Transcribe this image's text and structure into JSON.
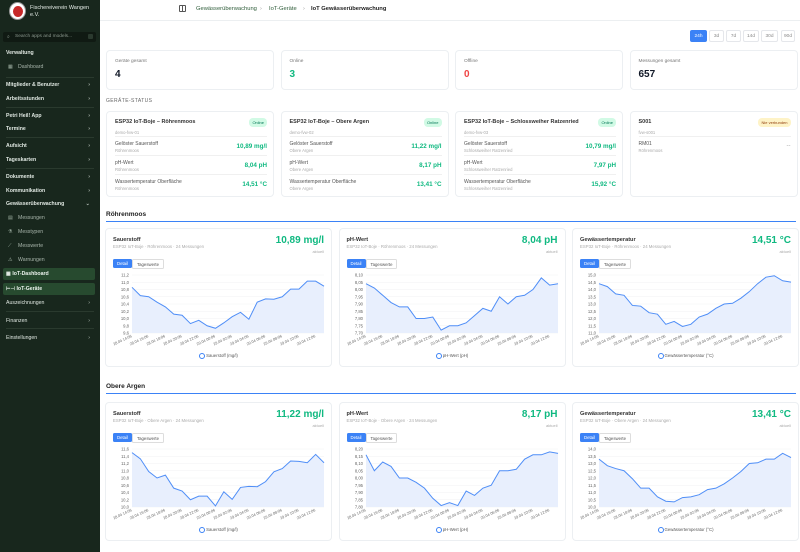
{
  "sidebar": {
    "org_name": "Fischereiverein Wangen e.V.",
    "search_placeholder": "Search apps and models...",
    "section": "Verwaltung",
    "dashboard": "Dashboard",
    "groups": [
      "Mitglieder & Benutzer",
      "Arbeitsstunden",
      "Petri Heil! App",
      "Termine",
      "Aufsicht",
      "Tageskarten",
      "Dokumente",
      "Kommunikation",
      "Gewässerüberwachung"
    ],
    "sub": [
      "Messungen",
      "Messtypen",
      "Messwerte",
      "Warnungen",
      "IoT-Dashboard",
      "IoT-Geräte"
    ],
    "bottom": [
      "Auszeichnungen",
      "Finanzen",
      "Einstellungen"
    ]
  },
  "breadcrumb": [
    "Gewässerüberwachung",
    "IoT-Geräte",
    "IoT Gewässerüberwachung"
  ],
  "ranges": [
    "24h",
    "3d",
    "7d",
    "14d",
    "30d",
    "90d"
  ],
  "active_range": "24h",
  "stats": [
    {
      "label": "Geräte gesamt",
      "value": "4",
      "color": "#111827"
    },
    {
      "label": "Online",
      "value": "3",
      "color": "#10b981"
    },
    {
      "label": "Offline",
      "value": "0",
      "color": "#ef4444"
    },
    {
      "label": "Messungen gesamt",
      "value": "657",
      "color": "#111827"
    }
  ],
  "status_heading": "GERÄTE-STATUS",
  "devices": [
    {
      "name": "ESP32 IoT-Boje – Röhrenmoos",
      "badge": "Online",
      "id": "demo-fvw-01",
      "rows": [
        {
          "name": "Gelöster Sauerstoff",
          "site": "Röhrenmoos",
          "value": "10,89 mg/l"
        },
        {
          "name": "pH-Wert",
          "site": "Röhrenmoos",
          "value": "8,04 pH"
        },
        {
          "name": "Wassertemperatur Oberfläche",
          "site": "Röhrenmoos",
          "value": "14,51 °C"
        }
      ]
    },
    {
      "name": "ESP32 IoT-Boje – Obere Argen",
      "badge": "Online",
      "id": "demo-fvw-02",
      "rows": [
        {
          "name": "Gelöster Sauerstoff",
          "site": "Obere Argen",
          "value": "11,22 mg/l"
        },
        {
          "name": "pH-Wert",
          "site": "Obere Argen",
          "value": "8,17 pH"
        },
        {
          "name": "Wassertemperatur Oberfläche",
          "site": "Obere Argen",
          "value": "13,41 °C"
        }
      ]
    },
    {
      "name": "ESP32 IoT-Boje – Schlossweiher Ratzenried",
      "badge": "Online",
      "id": "demo-fvw-03",
      "rows": [
        {
          "name": "Gelöster Sauerstoff",
          "site": "Schlossweiher Ratzenried",
          "value": "10,79 mg/l"
        },
        {
          "name": "pH-Wert",
          "site": "Schlossweiher Ratzenried",
          "value": "7,97 pH"
        },
        {
          "name": "Wassertemperatur Oberfläche",
          "site": "Schlossweiher Ratzenried",
          "value": "15,92 °C"
        }
      ]
    },
    {
      "name": "S001",
      "badge": "Nie verbunden",
      "id": "fvw-s001",
      "rows": [
        {
          "name": "RM01",
          "site": "Röhrenmoos",
          "value": "--"
        }
      ]
    }
  ],
  "sections": [
    "Röhrenmoos",
    "Obere Argen"
  ],
  "chart_buttons": {
    "detail": "Detail",
    "daily": "Tageswerte",
    "current": "aktuell"
  },
  "chart_data": [
    {
      "type": "line",
      "title": "Sauerstoff",
      "subtitle": "ESP32 IoT-Boje · Röhrenmoos · 24 Messungen",
      "current": "10,89 mg/l",
      "legend": "Sauerstoff (mg/l)",
      "ylim": [
        9.6,
        11.2
      ],
      "ystep": 0.2,
      "ydec": 1,
      "x_labels": [
        "28.04 14:06",
        "28.04 16:06",
        "28.04 18:06",
        "28.04 20:06",
        "28.04 22:06",
        "29.04 00:06",
        "29.04 02:06",
        "29.04 04:06",
        "29.04 06:06",
        "29.04 08:06",
        "29.04 10:06",
        "29.04 12:06"
      ],
      "values": [
        10.86,
        10.63,
        10.6,
        10.45,
        10.32,
        10.12,
        10.09,
        9.86,
        9.95,
        9.8,
        9.73,
        9.88,
        10.05,
        10.17,
        9.98,
        10.45,
        10.54,
        10.53,
        10.6,
        10.81,
        10.81,
        11.03,
        11.03,
        10.89
      ]
    },
    {
      "type": "line",
      "title": "pH-Wert",
      "subtitle": "ESP32 IoT-Boje · Röhrenmoos · 24 Messungen",
      "current": "8,04 pH",
      "legend": "pH-Wert (pH)",
      "ylim": [
        7.7,
        8.1
      ],
      "ystep": 0.05,
      "ydec": 2,
      "x_labels": [
        "28.04 14:06",
        "28.04 16:06",
        "28.04 18:06",
        "28.04 20:06",
        "28.04 22:06",
        "29.04 00:06",
        "29.04 02:06",
        "29.04 04:06",
        "29.04 06:06",
        "29.04 08:06",
        "29.04 10:06",
        "29.04 12:06"
      ],
      "values": [
        8.04,
        8.01,
        7.96,
        7.91,
        7.88,
        7.88,
        7.8,
        7.8,
        7.81,
        7.72,
        7.75,
        7.75,
        7.77,
        7.82,
        7.87,
        7.85,
        7.95,
        7.9,
        7.95,
        7.96,
        8.0,
        8.08,
        8.03,
        8.04
      ]
    },
    {
      "type": "line",
      "title": "Gewässertemperatur",
      "subtitle": "ESP32 IoT-Boje · Röhrenmoos · 24 Messungen",
      "current": "14,51 °C",
      "legend": "Gewässertemperatur (°C)",
      "ylim": [
        11,
        15
      ],
      "ystep": 0.5,
      "ydec": 1,
      "x_labels": [
        "28.04 14:06",
        "28.04 16:06",
        "28.04 18:06",
        "28.04 20:06",
        "28.04 22:06",
        "29.04 00:06",
        "29.04 02:06",
        "29.04 04:06",
        "29.04 06:06",
        "29.04 08:06",
        "29.04 10:06",
        "29.04 12:06"
      ],
      "values": [
        14.4,
        14.2,
        13.7,
        13.6,
        12.9,
        12.85,
        12.4,
        12.3,
        11.6,
        11.8,
        11.45,
        11.6,
        12.1,
        12.3,
        12.7,
        13.0,
        13.05,
        13.4,
        13.85,
        14.4,
        14.85,
        14.95,
        14.6,
        14.51
      ]
    },
    {
      "type": "line",
      "title": "Sauerstoff",
      "subtitle": "ESP32 IoT-Boje · Obere Argen · 24 Messungen",
      "current": "11,22 mg/l",
      "legend": "Sauerstoff (mg/l)",
      "ylim": [
        10,
        11.6
      ],
      "ystep": 0.2,
      "ydec": 1,
      "x_labels": [
        "28.04 14:06",
        "28.04 16:06",
        "28.04 18:06",
        "28.04 20:06",
        "28.04 22:06",
        "29.04 00:06",
        "29.04 02:06",
        "29.04 04:06",
        "29.04 06:06",
        "29.04 08:06",
        "29.04 10:06",
        "29.04 12:06"
      ],
      "values": [
        11.5,
        11.33,
        10.98,
        10.8,
        10.88,
        10.52,
        10.44,
        10.2,
        10.3,
        10.3,
        10.03,
        10.42,
        10.21,
        10.54,
        10.57,
        10.56,
        10.7,
        10.97,
        11.06,
        11.27,
        11.26,
        11.22,
        11.45,
        11.22
      ]
    },
    {
      "type": "line",
      "title": "pH-Wert",
      "subtitle": "ESP32 IoT-Boje · Obere Argen · 24 Messungen",
      "current": "8,17 pH",
      "legend": "pH-Wert (pH)",
      "ylim": [
        7.8,
        8.2
      ],
      "ystep": 0.05,
      "ydec": 2,
      "x_labels": [
        "28.04 14:06",
        "28.04 16:06",
        "28.04 18:06",
        "28.04 20:06",
        "28.04 22:06",
        "29.04 00:06",
        "29.04 02:06",
        "29.04 04:06",
        "29.04 06:06",
        "29.04 08:06",
        "29.04 10:06",
        "29.04 12:06"
      ],
      "values": [
        8.16,
        8.05,
        8.11,
        8.08,
        8.0,
        8.0,
        7.97,
        7.93,
        7.86,
        7.81,
        7.83,
        7.81,
        7.91,
        7.88,
        7.93,
        7.95,
        8.05,
        8.05,
        8.06,
        8.13,
        8.16,
        8.16,
        8.18,
        8.17
      ]
    },
    {
      "type": "line",
      "title": "Gewässertemperatur",
      "subtitle": "ESP32 IoT-Boje · Obere Argen · 24 Messungen",
      "current": "13,41 °C",
      "legend": "Gewässertemperatur (°C)",
      "ylim": [
        10,
        14
      ],
      "ystep": 0.5,
      "ydec": 1,
      "x_labels": [
        "28.04 14:06",
        "28.04 16:06",
        "28.04 18:06",
        "28.04 20:06",
        "28.04 22:06",
        "29.04 00:06",
        "29.04 02:06",
        "29.04 04:06",
        "29.04 06:06",
        "29.04 08:06",
        "29.04 10:06",
        "29.04 12:06"
      ],
      "values": [
        13.3,
        12.85,
        12.65,
        12.5,
        11.95,
        11.3,
        11.3,
        10.7,
        10.4,
        10.35,
        10.65,
        10.7,
        10.85,
        11.2,
        11.3,
        11.6,
        12.0,
        12.45,
        13.0,
        13.05,
        13.3,
        13.3,
        13.7,
        13.41
      ]
    }
  ]
}
